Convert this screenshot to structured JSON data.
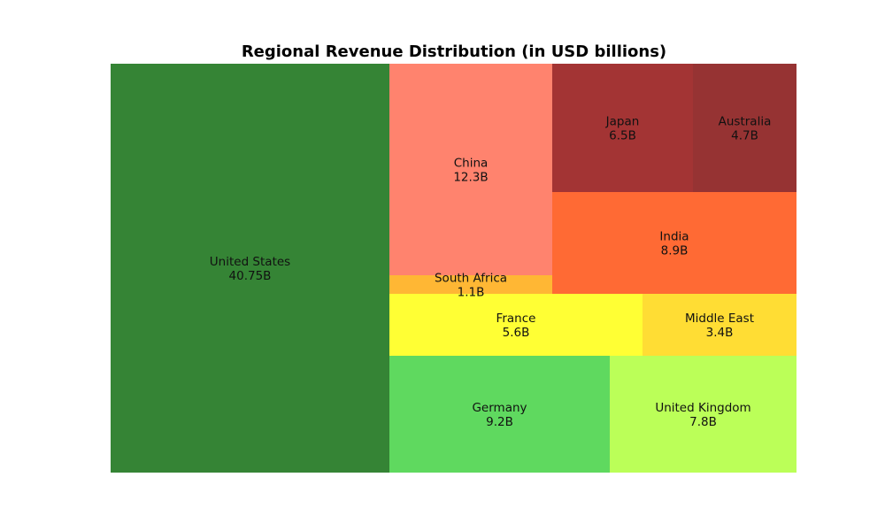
{
  "chart_data": {
    "type": "treemap",
    "title": "Regional Revenue Distribution (in USD billions)",
    "unit": "B",
    "items": [
      {
        "label": "United States",
        "value": 40.75,
        "value_text": "40.75B",
        "color": "#358435"
      },
      {
        "label": "China",
        "value": 12.3,
        "value_text": "12.3B",
        "color": "#FF836E"
      },
      {
        "label": "South Africa",
        "value": 1.1,
        "value_text": "1.1B",
        "color": "#FFB734"
      },
      {
        "label": "Japan",
        "value": 6.5,
        "value_text": "6.5B",
        "color": "#A33434"
      },
      {
        "label": "Australia",
        "value": 4.7,
        "value_text": "4.7B",
        "color": "#963333"
      },
      {
        "label": "India",
        "value": 8.9,
        "value_text": "8.9B",
        "color": "#FF6A34"
      },
      {
        "label": "France",
        "value": 5.6,
        "value_text": "5.6B",
        "color": "#FFFF34"
      },
      {
        "label": "Middle East",
        "value": 3.4,
        "value_text": "3.4B",
        "color": "#FFDD34"
      },
      {
        "label": "Germany",
        "value": 9.2,
        "value_text": "9.2B",
        "color": "#5FD95F"
      },
      {
        "label": "United Kingdom",
        "value": 7.8,
        "value_text": "7.8B",
        "color": "#BBFF58"
      }
    ]
  }
}
